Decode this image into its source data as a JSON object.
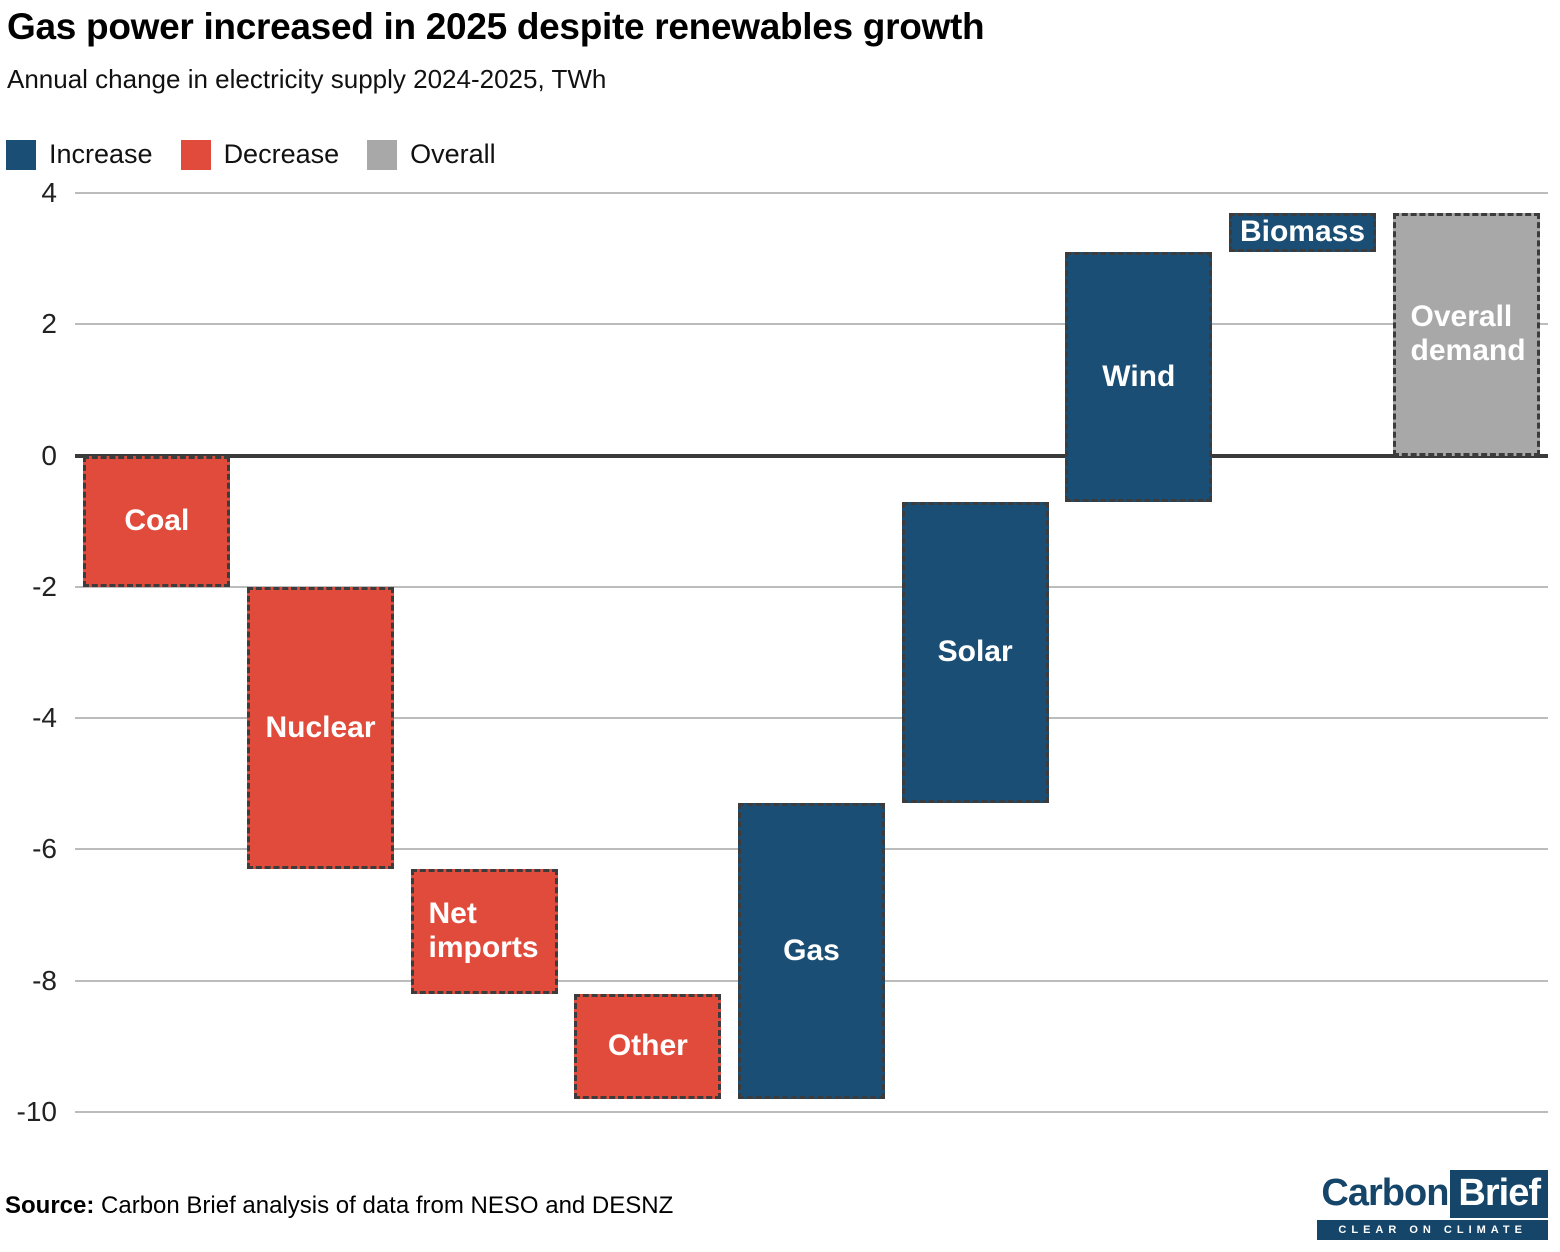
{
  "header": {
    "title": "Gas power increased in 2025 despite renewables growth",
    "subtitle": "Annual change in electricity supply 2024-2025, TWh"
  },
  "legend": [
    {
      "label": "Increase",
      "color": "#1b4e74"
    },
    {
      "label": "Decrease",
      "color": "#e14b3b"
    },
    {
      "label": "Overall",
      "color": "#a8a8a8"
    }
  ],
  "chart_data": {
    "type": "bar",
    "subtype": "waterfall",
    "title": "Gas power increased in 2025 despite renewables growth",
    "xlabel": "",
    "ylabel": "Annual change in electricity supply 2024-2025, TWh",
    "unit": "TWh",
    "ylim": [
      -10,
      4
    ],
    "yticks": [
      4,
      2,
      0,
      -2,
      -4,
      -6,
      -8,
      -10
    ],
    "grid": true,
    "legend_position": "top-left",
    "colors": {
      "increase": "#1b4e74",
      "decrease": "#e14b3b",
      "overall": "#a8a8a8"
    },
    "bars": [
      {
        "label": "Coal",
        "type": "decrease",
        "start": 0,
        "end": -2.0,
        "change": -2.0,
        "align": "center"
      },
      {
        "label": "Nuclear",
        "type": "decrease",
        "start": -2.0,
        "end": -6.3,
        "change": -4.3,
        "align": "center"
      },
      {
        "label": "Net imports",
        "type": "decrease",
        "start": -6.3,
        "end": -8.2,
        "change": -1.9,
        "align": "left"
      },
      {
        "label": "Other",
        "type": "decrease",
        "start": -8.2,
        "end": -9.8,
        "change": -1.6,
        "align": "center"
      },
      {
        "label": "Gas",
        "type": "increase",
        "start": -9.8,
        "end": -5.3,
        "change": 4.5,
        "align": "center"
      },
      {
        "label": "Solar",
        "type": "increase",
        "start": -5.3,
        "end": -0.7,
        "change": 4.6,
        "align": "center"
      },
      {
        "label": "Wind",
        "type": "increase",
        "start": -0.7,
        "end": 3.1,
        "change": 3.8,
        "align": "center"
      },
      {
        "label": "Biomass",
        "type": "increase",
        "start": 3.1,
        "end": 3.7,
        "change": 0.6,
        "align": "center"
      },
      {
        "label": "Overall demand",
        "type": "overall",
        "start": 0,
        "end": 3.7,
        "change": 3.7,
        "align": "left"
      }
    ]
  },
  "footer": {
    "source_label": "Source:",
    "source_text": " Carbon Brief analysis of data from NESO and DESNZ",
    "logo": {
      "part1": "Carbon",
      "part2": "Brief",
      "tagline": "CLEAR ON CLIMATE",
      "brand_navy": "#16456a"
    }
  }
}
